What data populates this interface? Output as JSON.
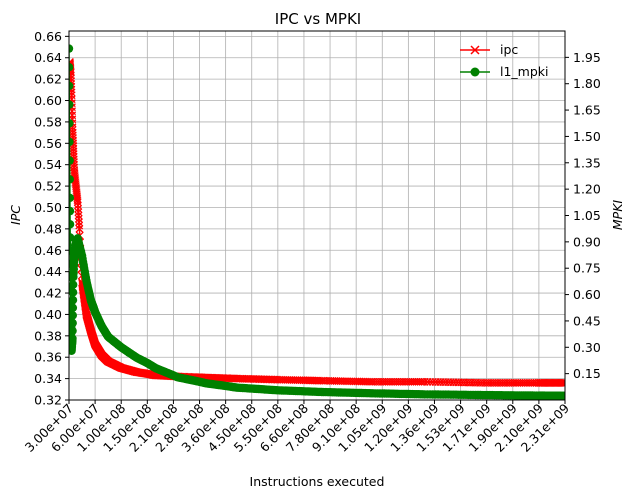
{
  "chart_data": {
    "type": "line",
    "title": "IPC vs MPKI",
    "xlabel": "Instructions executed",
    "ylabel_left": "IPC",
    "ylabel_right": "MPKI",
    "xlim": [
      30000000,
      2310000000
    ],
    "ylim_left": [
      0.32,
      0.665
    ],
    "ylim_right": [
      0.0,
      2.1
    ],
    "grid": true,
    "legend_position": "top-right",
    "x_tick_labels": [
      "3.00e+07",
      "6.00e+07",
      "1.00e+08",
      "1.50e+08",
      "2.10e+08",
      "2.80e+08",
      "3.60e+08",
      "4.50e+08",
      "5.50e+08",
      "6.60e+08",
      "7.80e+08",
      "9.10e+08",
      "1.05e+09",
      "1.20e+09",
      "1.36e+09",
      "1.53e+09",
      "1.71e+09",
      "1.90e+09",
      "2.10e+09",
      "2.31e+09"
    ],
    "y_left_ticks": [
      0.32,
      0.34,
      0.36,
      0.38,
      0.4,
      0.42,
      0.44,
      0.46,
      0.48,
      0.5,
      0.52,
      0.54,
      0.56,
      0.58,
      0.6,
      0.62,
      0.64,
      0.66
    ],
    "y_left_tick_labels": [
      "0.32",
      "0.34",
      "0.36",
      "0.38",
      "0.40",
      "0.42",
      "0.44",
      "0.46",
      "0.48",
      "0.50",
      "0.52",
      "0.54",
      "0.56",
      "0.58",
      "0.60",
      "0.62",
      "0.64",
      "0.66"
    ],
    "y_right_ticks": [
      0.15,
      0.3,
      0.45,
      0.6,
      0.75,
      0.9,
      1.05,
      1.2,
      1.35,
      1.5,
      1.65,
      1.8,
      1.95
    ],
    "y_right_tick_labels": [
      "0.15",
      "0.30",
      "0.45",
      "0.60",
      "0.75",
      "0.90",
      "1.05",
      "1.20",
      "1.35",
      "1.50",
      "1.65",
      "1.80",
      "1.95"
    ],
    "series": [
      {
        "name": "ipc",
        "axis": "left",
        "color": "#ff0000",
        "marker": "x",
        "x": [
          30000000,
          31000000,
          32000000,
          33000000,
          34000000,
          35000000,
          36000000,
          38000000,
          40000000,
          42000000,
          45000000,
          50000000,
          55000000,
          60000000,
          70000000,
          80000000,
          100000000,
          130000000,
          170000000,
          220000000,
          300000000,
          400000000,
          550000000,
          750000000,
          1000000000,
          1300000000,
          1700000000,
          2100000000,
          2310000000
        ],
        "values": [
          0.63,
          0.636,
          0.626,
          0.605,
          0.575,
          0.555,
          0.535,
          0.52,
          0.505,
          0.48,
          0.43,
          0.4,
          0.385,
          0.372,
          0.362,
          0.356,
          0.35,
          0.346,
          0.343,
          0.342,
          0.341,
          0.34,
          0.339,
          0.338,
          0.337,
          0.337,
          0.336,
          0.336,
          0.336
        ]
      },
      {
        "name": "l1_mpki",
        "axis": "right",
        "color": "#008000",
        "marker": "o",
        "x": [
          30000000,
          31000000,
          32000000,
          33000000,
          34000000,
          35000000,
          37000000,
          40000000,
          45000000,
          50000000,
          55000000,
          60000000,
          70000000,
          80000000,
          100000000,
          130000000,
          170000000,
          220000000,
          300000000,
          400000000,
          550000000,
          750000000,
          1000000000,
          1300000000,
          1700000000,
          2100000000,
          2310000000
        ],
        "values": [
          2.0,
          1.15,
          0.55,
          0.28,
          0.35,
          0.7,
          0.88,
          0.92,
          0.82,
          0.68,
          0.57,
          0.5,
          0.42,
          0.36,
          0.3,
          0.24,
          0.18,
          0.13,
          0.095,
          0.07,
          0.055,
          0.045,
          0.038,
          0.032,
          0.028,
          0.025,
          0.024
        ]
      }
    ]
  }
}
